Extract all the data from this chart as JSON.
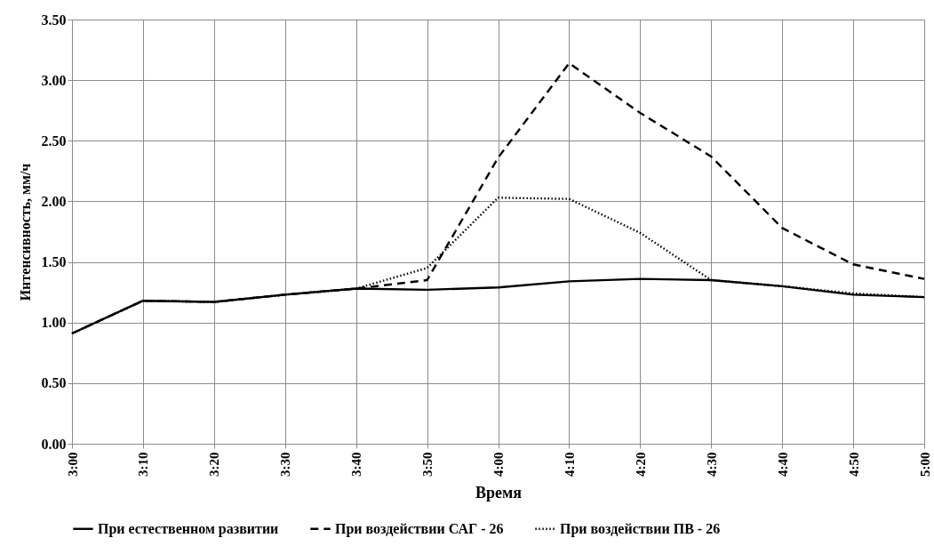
{
  "chart_data": {
    "type": "line",
    "xlabel": "Время",
    "ylabel": "Интенсивность,  мм/ч",
    "categories": [
      "3:00",
      "3:10",
      "3:20",
      "3:30",
      "3:40",
      "3:50",
      "4:00",
      "4:10",
      "4:20",
      "4:30",
      "4:40",
      "4:50",
      "5:00"
    ],
    "series": [
      {
        "name": "При естественном развитии",
        "color": "#000000",
        "line_style": "solid",
        "values": [
          0.91,
          1.18,
          1.17,
          1.23,
          1.28,
          1.27,
          1.29,
          1.34,
          1.36,
          1.35,
          1.3,
          1.23,
          1.21
        ]
      },
      {
        "name": "При воздействии САГ - 26",
        "color": "#000000",
        "line_style": "dashed",
        "values": [
          0.91,
          1.18,
          1.17,
          1.23,
          1.28,
          1.35,
          2.36,
          3.14,
          2.73,
          2.37,
          1.78,
          1.48,
          1.36
        ]
      },
      {
        "name": "При воздействии ПВ - 26",
        "color": "#000000",
        "line_style": "dotted",
        "values": [
          0.91,
          1.18,
          1.17,
          1.23,
          1.28,
          1.45,
          2.03,
          2.02,
          1.74,
          1.35,
          1.3,
          1.24,
          1.21
        ]
      }
    ],
    "ylim": [
      0,
      3.5
    ],
    "yticks": [
      {
        "value": 0,
        "label": "0.00"
      },
      {
        "value": 0.5,
        "label": "0.50"
      },
      {
        "value": 1,
        "label": "1.00"
      },
      {
        "value": 1.5,
        "label": "1.50"
      },
      {
        "value": 2,
        "label": "2.00"
      },
      {
        "value": 2.5,
        "label": "2.50"
      },
      {
        "value": 3,
        "label": "3.00"
      },
      {
        "value": 3.5,
        "label": "3.50"
      }
    ],
    "grid": true,
    "legend": "bottom"
  }
}
